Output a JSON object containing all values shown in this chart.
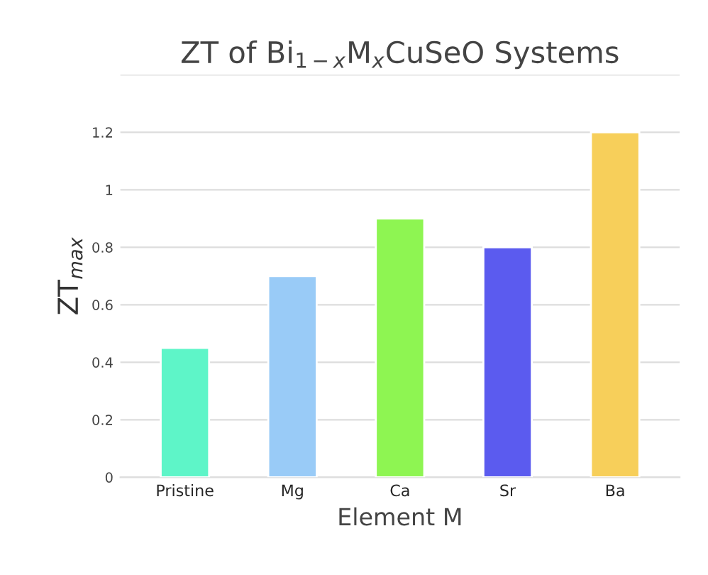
{
  "chart_data": {
    "type": "bar",
    "title": "ZT of Bi$_{1−x}$M$_{x}$CuSeO Systems",
    "xlabel": "Element M",
    "ylabel": "ZT$_{max}$",
    "categories": [
      "Pristine",
      "Mg",
      "Ca",
      "Sr",
      "Ba"
    ],
    "values": [
      0.45,
      0.7,
      0.9,
      0.8,
      1.2
    ],
    "colors": [
      "#5ef5c8",
      "#99cbf7",
      "#8ef552",
      "#5b5bef",
      "#f7cf5a"
    ],
    "ylim": [
      0,
      1.4
    ],
    "yticks": [
      0,
      {
        "value": 0.2,
        "label": "0.2"
      },
      {
        "value": 0.4,
        "label": "0.4"
      },
      {
        "value": 0.6,
        "label": "0.6"
      },
      {
        "value": 0.8,
        "label": "0.8"
      },
      1,
      {
        "value": 1.2,
        "label": "1.2"
      },
      {
        "value": 1.4,
        "label": null
      }
    ],
    "grid": "y",
    "legend": false
  }
}
